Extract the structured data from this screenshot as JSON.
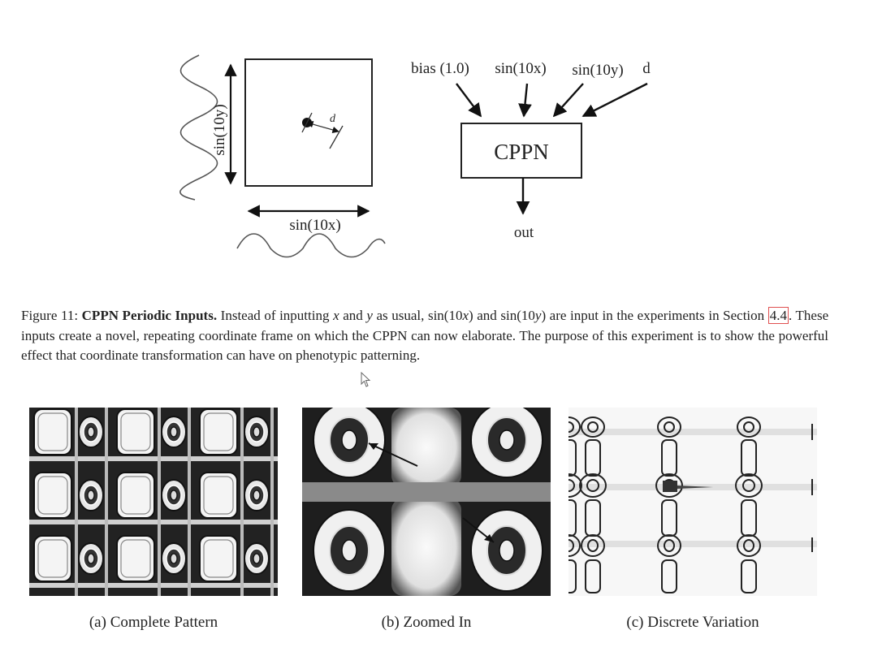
{
  "diagram": {
    "left": {
      "y_axis_label": "sin(10y)",
      "x_axis_label": "sin(10x)",
      "distance_label": "d"
    },
    "right": {
      "inputs": [
        "bias (1.0)",
        "sin(10x)",
        "sin(10y)",
        "d"
      ],
      "box_label": "CPPN",
      "output_label": "out"
    }
  },
  "caption": {
    "figure_label": "Figure 11:",
    "title": "CPPN Periodic Inputs.",
    "t1": "Instead of inputting",
    "x_var": "x",
    "t2": "and",
    "y_var": "y",
    "t3": "as usual, sin(10",
    "t4": ") and sin(10",
    "t5": ") are input in the experiments in Section",
    "section_ref": "4.4",
    "t6": ". These inputs create a novel, repeating coordinate frame on which the CPPN can now elaborate. The purpose of this experiment is to show the powerful effect that coordinate transformation can have on phenotypic patterning."
  },
  "panels": [
    {
      "caption": "(a) Complete Pattern"
    },
    {
      "caption": "(b) Zoomed In"
    },
    {
      "caption": "(c) Discrete Variation"
    }
  ]
}
